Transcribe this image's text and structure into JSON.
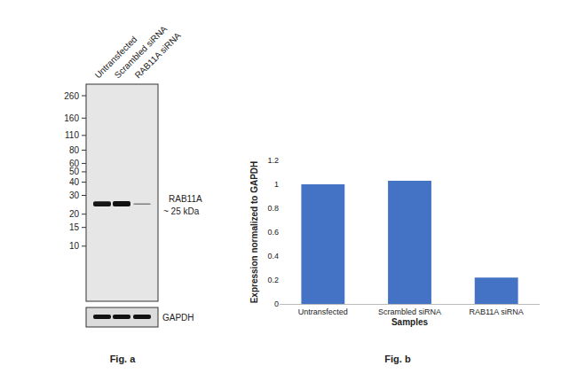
{
  "chart_data": {
    "type": "bar",
    "categories": [
      "Untransfected",
      "Scrambled siRNA",
      "RAB11A siRNA"
    ],
    "values": [
      1.0,
      1.03,
      0.22
    ],
    "color": "#4472c4",
    "xlabel": "Samples",
    "ylabel": "Expression normalized to GAPDH",
    "ylim": [
      0,
      1.2
    ],
    "yticks": [
      0,
      0.2,
      0.4,
      0.6,
      0.8,
      1,
      1.2
    ],
    "grid": false
  },
  "blot": {
    "lanes": [
      "Untransfected",
      "Scrambled siRNA",
      "RAB11A siRNA"
    ],
    "markers": [
      260,
      160,
      110,
      80,
      60,
      50,
      40,
      30,
      20,
      15,
      10
    ],
    "band": {
      "label": "RAB11A",
      "size_label": "~ 25 kDa",
      "kda": 25
    },
    "loading_control": "GAPDH"
  },
  "captions": [
    "Fig. a",
    "Fig. b"
  ]
}
